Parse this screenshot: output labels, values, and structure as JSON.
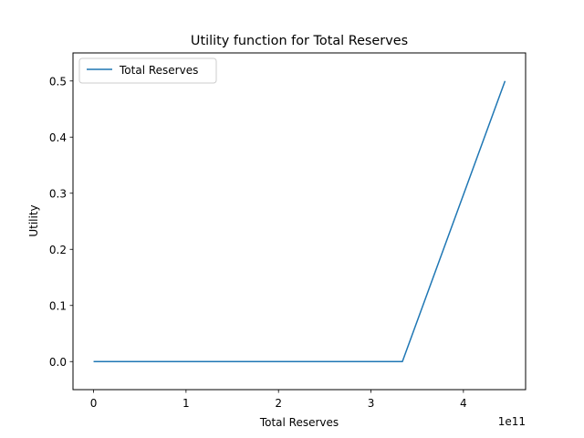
{
  "chart_data": {
    "type": "line",
    "title": "Utility function for Total Reserves",
    "xlabel": "Total Reserves",
    "ylabel": "Utility",
    "x_offset_label": "1e11",
    "x": [
      0,
      334000000000,
      445000000000
    ],
    "series": [
      {
        "name": "Total Reserves",
        "values": [
          0.0,
          0.0,
          0.5
        ],
        "color": "#1f77b4"
      }
    ],
    "xlim": [
      -22250000000,
      467250000000
    ],
    "ylim": [
      -0.05,
      0.55
    ],
    "x_ticks": [
      0,
      100000000000,
      200000000000,
      300000000000,
      400000000000
    ],
    "x_tick_labels": [
      "0",
      "1",
      "2",
      "3",
      "4"
    ],
    "y_ticks": [
      0.0,
      0.1,
      0.2,
      0.3,
      0.4,
      0.5
    ],
    "y_tick_labels": [
      "0.0",
      "0.1",
      "0.2",
      "0.3",
      "0.4",
      "0.5"
    ],
    "grid": false,
    "legend_position": "top-left"
  }
}
